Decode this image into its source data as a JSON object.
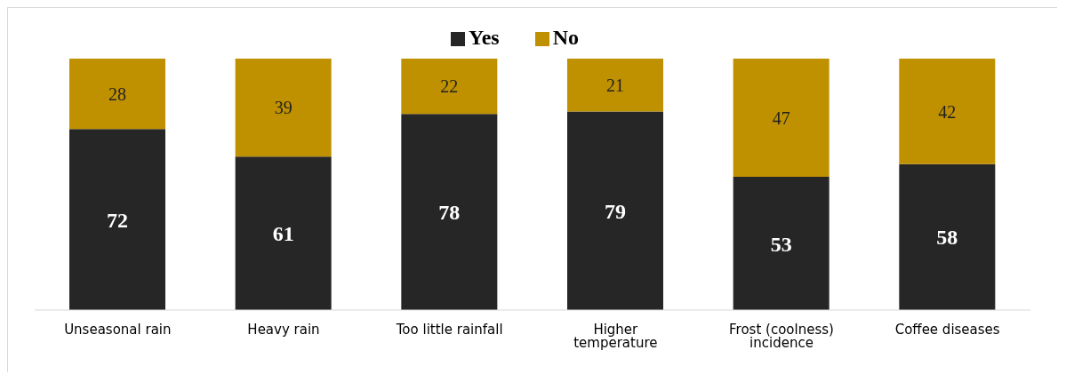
{
  "chart_data": {
    "type": "bar",
    "stacked": true,
    "categories": [
      "Unseasonal rain",
      "Heavy rain",
      "Too little rainfall",
      "Higher temperature",
      "Frost (coolness) incidence",
      "Coffee diseases"
    ],
    "series": [
      {
        "name": "Yes",
        "color": "#262626",
        "values": [
          72,
          61,
          78,
          79,
          53,
          58
        ]
      },
      {
        "name": "No",
        "color": "#bf9000",
        "values": [
          28,
          39,
          22,
          21,
          47,
          42
        ]
      }
    ],
    "data_labels": true,
    "legend": "top"
  }
}
